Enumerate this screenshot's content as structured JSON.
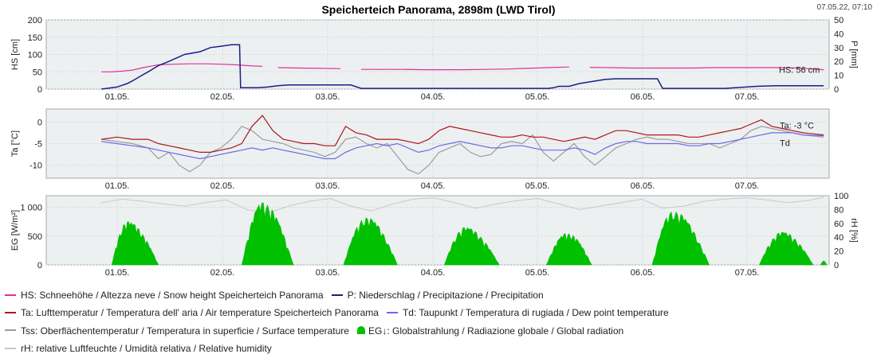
{
  "page": {
    "title": "Speicherteich Panorama, 2898m (LWD Tirol)",
    "timestamp": "07.05.22, 07:10"
  },
  "colors": {
    "hs": "#e0309a",
    "p": "#1b1f86",
    "ta": "#b0141c",
    "td": "#6a6ae6",
    "tss": "#9c9c9c",
    "eg": "#00c000",
    "rh": "#c8c8c8"
  },
  "legend": [
    [
      {
        "key": "hs",
        "kind": "line",
        "text": "HS: Schneehöhe / Altezza neve / Snow height  Speicherteich Panorama"
      },
      {
        "key": "p",
        "kind": "line",
        "text": "P: Niederschlag / Precipitazione / Precipitation"
      }
    ],
    [
      {
        "key": "ta",
        "kind": "line",
        "text": "Ta: Lufttemperatur / Temperatura dell' aria / Air temperature  Speicherteich Panorama"
      },
      {
        "key": "td",
        "kind": "line",
        "text": "Td: Taupunkt / Temperatura di rugiada / Dew point temperature"
      }
    ],
    [
      {
        "key": "tss",
        "kind": "line",
        "text": "Tss: Oberflächentemperatur / Temperatura in superficie / Surface temperature"
      },
      {
        "key": "eg",
        "kind": "fill",
        "text": "EG↓: Globalstrahlung / Radiazione globale / Global radiation"
      }
    ],
    [
      {
        "key": "rh",
        "kind": "line",
        "text": "rH: relative Luftfeuchte / Umidità relativa / Relative humidity"
      }
    ]
  ],
  "chart_data": [
    {
      "type": "line",
      "x_ticks": [
        "01.05.",
        "02.05.",
        "03.05.",
        "04.05.",
        "05.05.",
        "06.05.",
        "07.05."
      ],
      "xlabel": "",
      "ylabel": "HS [cm]",
      "ylim": [
        0,
        200
      ],
      "y_ticks": [
        0,
        50,
        100,
        150,
        200
      ],
      "ylabel_right": "P [mm]",
      "ylim_right": [
        0,
        50
      ],
      "y_ticks_right": [
        0,
        10,
        20,
        30,
        40,
        50
      ],
      "grid": true,
      "annotation": "HS: 56 cm",
      "series": [
        {
          "key": "hs",
          "name": "HS",
          "axis": "left",
          "x": [
            0.0,
            0.1,
            0.2,
            0.3,
            0.4,
            0.55,
            0.7,
            0.85,
            1.0,
            1.15,
            1.3,
            1.45,
            1.55,
            1.62,
            1.7,
            1.9,
            2.1,
            2.3,
            2.4,
            2.5,
            2.7,
            2.9,
            3.1,
            3.3,
            3.5,
            3.7,
            3.9,
            4.1,
            4.3,
            4.5,
            4.6,
            4.7,
            4.9,
            5.1,
            5.3,
            5.5,
            5.7,
            5.9,
            6.1,
            6.3,
            6.5,
            6.7,
            6.95
          ],
          "y": [
            50,
            50,
            52,
            55,
            62,
            70,
            72,
            73,
            73,
            72,
            70,
            67,
            66,
            null,
            62,
            61,
            60,
            59,
            null,
            57,
            57,
            57,
            56,
            56,
            56,
            57,
            58,
            60,
            62,
            64,
            null,
            63,
            62,
            61,
            61,
            61,
            61,
            62,
            62,
            62,
            62,
            61,
            56
          ]
        },
        {
          "key": "p",
          "name": "P",
          "axis": "right",
          "x": [
            0.0,
            0.05,
            0.15,
            0.25,
            0.3,
            0.38,
            0.45,
            0.55,
            0.65,
            0.8,
            0.95,
            1.05,
            1.15,
            1.25,
            1.33,
            1.34,
            1.4,
            1.45,
            1.5,
            1.6,
            1.7,
            1.8,
            2.0,
            2.2,
            2.3,
            2.4,
            2.5,
            2.6,
            4.3,
            4.35,
            4.4,
            4.5,
            4.6,
            4.85,
            4.95,
            5.0,
            5.35,
            5.4,
            5.5,
            5.6,
            6.0,
            6.1,
            6.3,
            6.5,
            6.95
          ],
          "y": [
            0,
            0.5,
            1.5,
            4,
            6,
            9.5,
            12.5,
            17,
            20,
            25,
            27,
            30,
            31,
            32,
            32,
            1,
            1,
            1,
            1,
            1.5,
            2.5,
            3,
            3,
            3,
            3,
            3,
            0.5,
            0.5,
            0.5,
            1,
            2,
            2,
            4,
            7,
            7.5,
            7.5,
            7.5,
            0.5,
            0.5,
            0.5,
            0.5,
            1,
            2,
            2.5,
            2.5
          ]
        }
      ]
    },
    {
      "type": "line",
      "x_ticks": [
        "01.05.",
        "02.05.",
        "03.05.",
        "04.05.",
        "05.05.",
        "06.05.",
        "07.05."
      ],
      "xlabel": "",
      "ylabel": "Ta [°C]",
      "ylim": [
        -13,
        3
      ],
      "y_ticks": [
        -10,
        -5,
        0
      ],
      "grid": true,
      "annotations": [
        "Ta: -3 °C",
        "Td"
      ],
      "series": [
        {
          "key": "tss",
          "name": "Tss",
          "x": [
            0.0,
            0.15,
            0.3,
            0.45,
            0.55,
            0.65,
            0.75,
            0.85,
            0.95,
            1.05,
            1.15,
            1.25,
            1.35,
            1.45,
            1.55,
            1.65,
            1.75,
            1.85,
            1.95,
            2.05,
            2.15,
            2.25,
            2.35,
            2.45,
            2.55,
            2.65,
            2.75,
            2.85,
            2.95,
            3.05,
            3.15,
            3.25,
            3.35,
            3.45,
            3.55,
            3.65,
            3.75,
            3.85,
            3.95,
            4.05,
            4.15,
            4.25,
            4.35,
            4.45,
            4.55,
            4.65,
            4.75,
            4.85,
            4.95,
            5.05,
            5.15,
            5.25,
            5.35,
            5.45,
            5.55,
            5.65,
            5.75,
            5.85,
            5.95,
            6.05,
            6.15,
            6.25,
            6.35,
            6.45,
            6.55,
            6.65,
            6.75,
            6.95
          ],
          "y": [
            -4,
            -4.5,
            -5,
            -6,
            -8.5,
            -7,
            -10,
            -11.5,
            -10,
            -7,
            -6,
            -4,
            -1,
            -2,
            -4,
            -4.5,
            -5,
            -6,
            -6.5,
            -7,
            -8,
            -7,
            -4,
            -3.5,
            -5,
            -6,
            -5,
            -8,
            -11,
            -12,
            -10,
            -7,
            -6,
            -5,
            -7,
            -8,
            -7.5,
            -5,
            -4.5,
            -5,
            -3,
            -7,
            -9,
            -7,
            -5,
            -8,
            -10,
            -8,
            -6,
            -5,
            -4,
            -3.5,
            -4,
            -4,
            -4.5,
            -5,
            -5,
            -5,
            -6,
            -5,
            -4,
            -2,
            -1,
            -1.5,
            -2,
            -2.5,
            -3,
            -3.5
          ]
        },
        {
          "key": "td",
          "name": "Td",
          "x": [
            0.0,
            0.15,
            0.3,
            0.45,
            0.55,
            0.65,
            0.75,
            0.85,
            0.95,
            1.05,
            1.15,
            1.25,
            1.35,
            1.45,
            1.55,
            1.65,
            1.75,
            1.85,
            1.95,
            2.05,
            2.15,
            2.25,
            2.35,
            2.45,
            2.55,
            2.65,
            2.75,
            2.85,
            2.95,
            3.05,
            3.15,
            3.25,
            3.35,
            3.45,
            3.55,
            3.65,
            3.75,
            3.85,
            3.95,
            4.05,
            4.15,
            4.25,
            4.35,
            4.45,
            4.55,
            4.65,
            4.75,
            4.85,
            4.95,
            5.05,
            5.15,
            5.25,
            5.35,
            5.45,
            5.55,
            5.65,
            5.75,
            5.85,
            5.95,
            6.05,
            6.15,
            6.25,
            6.35,
            6.45,
            6.55,
            6.65,
            6.75,
            6.95
          ],
          "y": [
            -4.5,
            -5,
            -5.5,
            -6,
            -6.5,
            -7,
            -7.5,
            -8,
            -8.5,
            -8,
            -7.5,
            -7,
            -6.5,
            -6,
            -6.5,
            -6,
            -6.5,
            -7,
            -7.5,
            -8,
            -8.5,
            -8.5,
            -7,
            -6,
            -5.5,
            -5,
            -5.5,
            -5,
            -6,
            -7,
            -6.5,
            -5.5,
            -5,
            -4.5,
            -5,
            -5.5,
            -6,
            -6,
            -5.5,
            -5.5,
            -6,
            -6.5,
            -6.5,
            -6.5,
            -6,
            -6.5,
            -7.5,
            -6,
            -5,
            -4.5,
            -4.5,
            -5,
            -5,
            -5,
            -5,
            -5.5,
            -5.5,
            -5,
            -5,
            -4.5,
            -4,
            -3.5,
            -3,
            -2.5,
            -2.5,
            -2.5,
            -3,
            -3.2
          ]
        },
        {
          "key": "ta",
          "name": "Ta",
          "x": [
            0.0,
            0.15,
            0.3,
            0.45,
            0.55,
            0.65,
            0.75,
            0.85,
            0.95,
            1.05,
            1.15,
            1.25,
            1.35,
            1.45,
            1.55,
            1.65,
            1.75,
            1.85,
            1.95,
            2.05,
            2.15,
            2.25,
            2.35,
            2.45,
            2.55,
            2.65,
            2.75,
            2.85,
            2.95,
            3.05,
            3.15,
            3.25,
            3.35,
            3.45,
            3.55,
            3.65,
            3.75,
            3.85,
            3.95,
            4.05,
            4.15,
            4.25,
            4.35,
            4.45,
            4.55,
            4.65,
            4.75,
            4.85,
            4.95,
            5.05,
            5.15,
            5.25,
            5.35,
            5.45,
            5.55,
            5.65,
            5.75,
            5.85,
            5.95,
            6.05,
            6.15,
            6.25,
            6.35,
            6.45,
            6.55,
            6.65,
            6.75,
            6.95
          ],
          "y": [
            -4,
            -3.5,
            -4,
            -4,
            -5,
            -5.5,
            -6,
            -6.5,
            -7,
            -7,
            -6.5,
            -6,
            -5,
            -1,
            1.5,
            -2,
            -4,
            -4.5,
            -5,
            -5,
            -5.5,
            -5.5,
            -1,
            -2.5,
            -3,
            -4,
            -4,
            -4,
            -4.5,
            -5,
            -4,
            -2,
            -1,
            -1.5,
            -2,
            -2.5,
            -3,
            -3.5,
            -3.5,
            -3,
            -3.5,
            -3.5,
            -4,
            -4.5,
            -4,
            -3.5,
            -4,
            -3,
            -2,
            -2,
            -2.5,
            -3,
            -3,
            -3,
            -3,
            -3.5,
            -3.5,
            -3,
            -2.5,
            -2,
            -1.5,
            -0.5,
            0.5,
            -1,
            -1.5,
            -2,
            -2.5,
            -3
          ]
        }
      ]
    },
    {
      "type": "area",
      "x_ticks": [
        "01.05.",
        "02.05.",
        "03.05.",
        "04.05.",
        "05.05.",
        "06.05.",
        "07.05."
      ],
      "xlabel": "",
      "ylabel": "EG [W/m²]",
      "ylim": [
        0,
        1200
      ],
      "y_ticks": [
        0,
        500,
        1000
      ],
      "y_tick_labels": [
        "0",
        "500",
        "1 000"
      ],
      "ylabel_right": "rH [%]",
      "ylim_right": [
        0,
        100
      ],
      "y_ticks_right": [
        0,
        20,
        40,
        60,
        80,
        100
      ],
      "grid": true,
      "days": [
        {
          "start": 0.1,
          "peak_t": 0.25,
          "peak": 750,
          "end": 0.55
        },
        {
          "start": 1.35,
          "peak_t": 1.55,
          "peak": 1080,
          "end": 1.85
        },
        {
          "start": 2.33,
          "peak_t": 2.55,
          "peak": 820,
          "end": 2.85
        },
        {
          "start": 3.3,
          "peak_t": 3.5,
          "peak": 650,
          "end": 3.83
        },
        {
          "start": 4.28,
          "peak_t": 4.48,
          "peak": 550,
          "end": 4.72
        },
        {
          "start": 5.3,
          "peak_t": 5.5,
          "peak": 930,
          "end": 5.85
        },
        {
          "start": 6.33,
          "peak_t": 6.55,
          "peak": 570,
          "end": 6.85
        },
        {
          "start": 6.92,
          "peak_t": 6.95,
          "peak": 70,
          "end": 6.98
        }
      ],
      "series": [
        {
          "key": "rh",
          "name": "rH",
          "axis": "right",
          "x": [
            0.0,
            0.2,
            0.4,
            0.6,
            0.8,
            1.0,
            1.2,
            1.4,
            1.6,
            1.8,
            2.0,
            2.2,
            2.4,
            2.6,
            2.8,
            3.0,
            3.2,
            3.4,
            3.6,
            3.8,
            4.0,
            4.2,
            4.4,
            4.6,
            4.8,
            5.0,
            5.2,
            5.4,
            5.6,
            5.8,
            6.0,
            6.2,
            6.4,
            6.6,
            6.8,
            6.95
          ],
          "y": [
            90,
            95,
            92,
            88,
            85,
            90,
            94,
            80,
            75,
            85,
            92,
            96,
            85,
            78,
            88,
            95,
            97,
            90,
            82,
            88,
            93,
            96,
            88,
            80,
            85,
            90,
            95,
            82,
            85,
            92,
            95,
            97,
            94,
            90,
            93,
            98
          ]
        }
      ]
    }
  ]
}
